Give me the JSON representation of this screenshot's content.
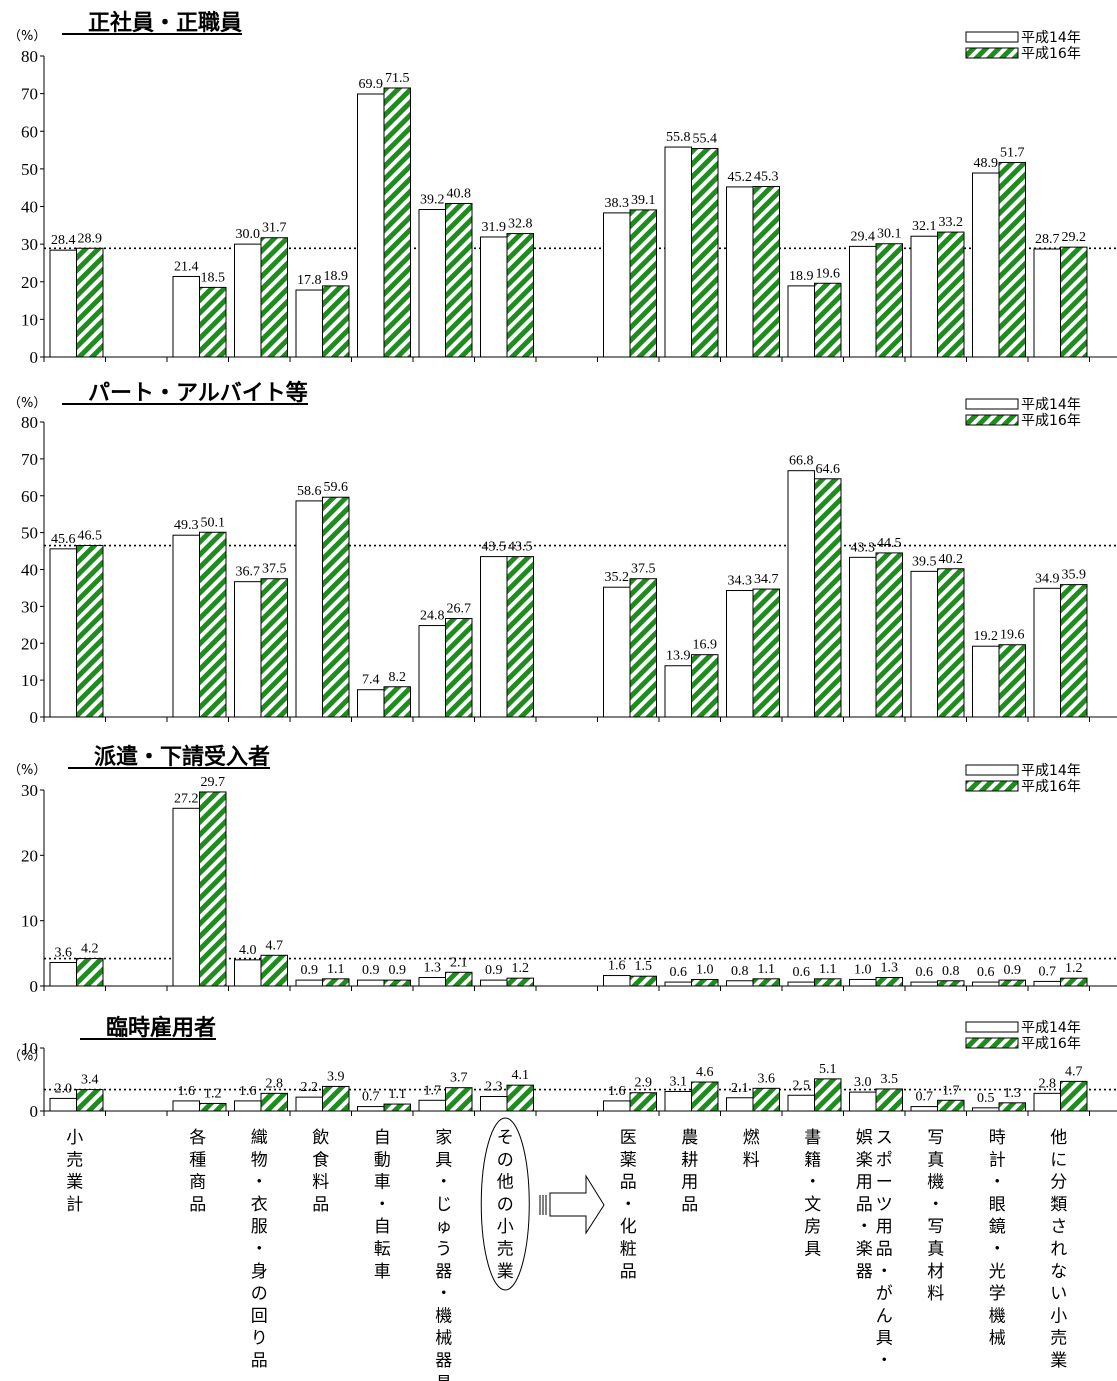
{
  "legend": {
    "y14": "平成14年",
    "y16": "平成16年"
  },
  "unit_label": "（%）",
  "colors": {
    "y14_fill": "#ffffff",
    "y16_stripe": "#1e8c1e",
    "bar_edge": "#000000"
  },
  "categories": [
    {
      "label": "小売業計",
      "slot": 0
    },
    {
      "label": "各種商品",
      "slot": 2
    },
    {
      "label": "織物・衣服・身の回り品",
      "slot": 3
    },
    {
      "label": "飲食料品",
      "slot": 4
    },
    {
      "label": "自動車・自転車",
      "slot": 5
    },
    {
      "label": "家具・じゅう器・機械器具",
      "slot": 6
    },
    {
      "label": "その他の小売業",
      "slot": 7,
      "circled": true
    },
    {
      "label": "医薬品・化粧品",
      "slot": 9
    },
    {
      "label": "農耕用品",
      "slot": 10
    },
    {
      "label": "燃料",
      "slot": 11
    },
    {
      "label": "書籍・文房具",
      "slot": 12
    },
    {
      "label": "スポーツ用品・がん具・娯楽用品・楽器",
      "slot": 13
    },
    {
      "label": "写真機・写真材料",
      "slot": 14
    },
    {
      "label": "時計・眼鏡・光学機械",
      "slot": 15
    },
    {
      "label": "他に分類されない小売業",
      "slot": 16
    }
  ],
  "chart_data": [
    {
      "type": "bar",
      "title": "正社員・正職員",
      "ylim": [
        0,
        80
      ],
      "yticks": [
        0,
        10,
        20,
        30,
        40,
        50,
        60,
        70,
        80
      ],
      "reference_line": 28.9,
      "series": [
        {
          "name": "平成14年",
          "values": [
            28.4,
            21.4,
            30.0,
            17.8,
            69.9,
            39.2,
            31.9,
            38.3,
            55.8,
            45.2,
            18.9,
            29.4,
            32.1,
            48.9,
            28.7
          ]
        },
        {
          "name": "平成16年",
          "values": [
            28.9,
            18.5,
            31.7,
            18.9,
            71.5,
            40.8,
            32.8,
            39.1,
            55.4,
            45.3,
            19.6,
            30.1,
            33.2,
            51.7,
            29.2
          ]
        }
      ]
    },
    {
      "type": "bar",
      "title": "パート・アルバイト等",
      "ylim": [
        0,
        80
      ],
      "yticks": [
        0,
        10,
        20,
        30,
        40,
        50,
        60,
        70,
        80
      ],
      "reference_line": 46.5,
      "series": [
        {
          "name": "平成14年",
          "values": [
            45.6,
            49.3,
            36.7,
            58.6,
            7.4,
            24.8,
            43.5,
            35.2,
            13.9,
            34.3,
            66.8,
            43.3,
            39.5,
            19.2,
            34.9
          ]
        },
        {
          "name": "平成16年",
          "values": [
            46.5,
            50.1,
            37.5,
            59.6,
            8.2,
            26.7,
            43.5,
            37.5,
            16.9,
            34.7,
            64.6,
            44.5,
            40.2,
            19.6,
            35.9
          ]
        }
      ]
    },
    {
      "type": "bar",
      "title": "派遣・下請受入者",
      "ylim": [
        0,
        30
      ],
      "yticks": [
        0,
        10,
        20,
        30
      ],
      "reference_line": 4.2,
      "series": [
        {
          "name": "平成14年",
          "values": [
            3.6,
            27.2,
            4.0,
            0.9,
            0.9,
            1.3,
            0.9,
            1.6,
            0.6,
            0.8,
            0.6,
            1.0,
            0.6,
            0.6,
            0.7
          ]
        },
        {
          "name": "平成16年",
          "values": [
            4.2,
            29.7,
            4.7,
            1.1,
            0.9,
            2.1,
            1.2,
            1.5,
            1.0,
            1.1,
            1.1,
            1.3,
            0.8,
            0.9,
            1.2
          ]
        }
      ]
    },
    {
      "type": "bar",
      "title": "臨時雇用者",
      "ylim": [
        0,
        10
      ],
      "yticks": [
        0,
        10
      ],
      "reference_line": 3.4,
      "series": [
        {
          "name": "平成14年",
          "values": [
            2.0,
            1.6,
            1.6,
            2.2,
            0.7,
            1.7,
            2.3,
            1.6,
            3.1,
            2.1,
            2.5,
            3.0,
            0.7,
            0.5,
            2.8
          ]
        },
        {
          "name": "平成16年",
          "values": [
            3.4,
            1.2,
            2.8,
            3.9,
            1.1,
            3.7,
            4.1,
            2.9,
            4.6,
            3.6,
            5.1,
            3.5,
            1.7,
            1.3,
            4.7
          ]
        }
      ]
    }
  ]
}
